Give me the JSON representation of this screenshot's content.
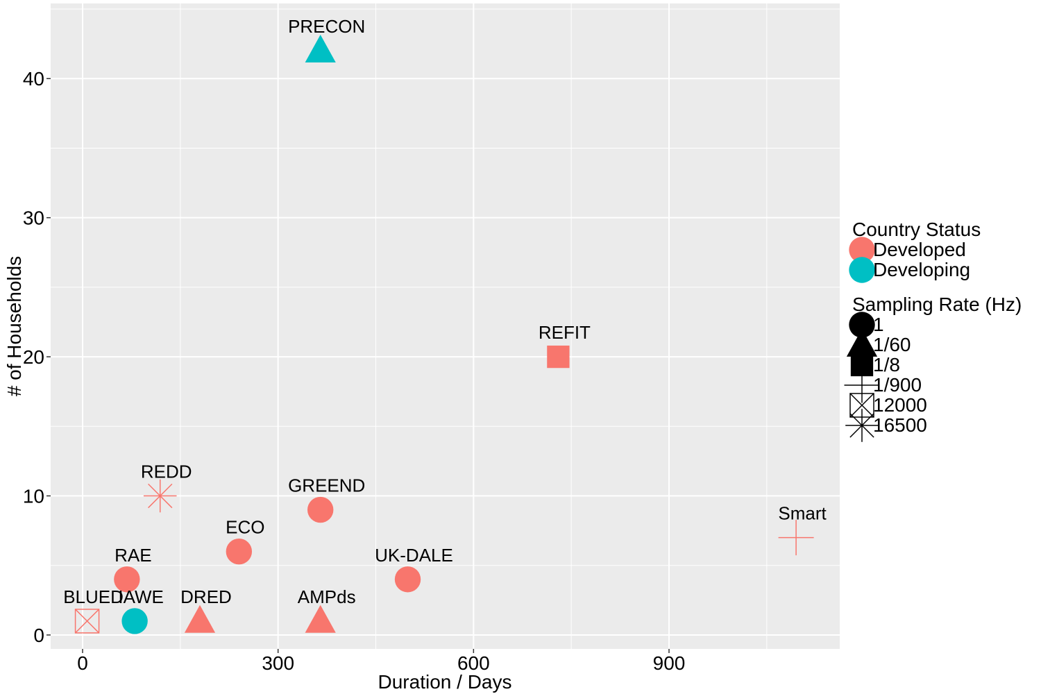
{
  "chart_data": {
    "type": "scatter",
    "title": "",
    "xlabel": "Duration / Days",
    "ylabel": "# of Households",
    "xlim": [
      -49,
      1162
    ],
    "ylim": [
      -1,
      45.4
    ],
    "x_ticks": [
      0,
      300,
      600,
      900
    ],
    "x_tick_labels": [
      "0",
      "300",
      "600",
      "900"
    ],
    "y_ticks": [
      0,
      10,
      20,
      30,
      40
    ],
    "y_tick_labels": [
      "0",
      "10",
      "20",
      "30",
      "40"
    ],
    "grid": true,
    "colors": {
      "panel": "#EBEBEB",
      "grid": "#FFFFFF",
      "Developed": "#F8766D",
      "Developing": "#00BFC4"
    },
    "points": [
      {
        "label": "PRECON",
        "x": 365,
        "y": 42,
        "status": "Developing",
        "rate": "1/60"
      },
      {
        "label": "REFIT",
        "x": 730,
        "y": 20,
        "status": "Developed",
        "rate": "1/8"
      },
      {
        "label": "REDD",
        "x": 119,
        "y": 10,
        "status": "Developed",
        "rate": "16500"
      },
      {
        "label": "GREEND",
        "x": 365,
        "y": 9,
        "status": "Developed",
        "rate": "1"
      },
      {
        "label": "ECO",
        "x": 240,
        "y": 6,
        "status": "Developed",
        "rate": "1"
      },
      {
        "label": "Smart",
        "x": 1095,
        "y": 7,
        "status": "Developed",
        "rate": "1/900"
      },
      {
        "label": "RAE",
        "x": 68,
        "y": 4,
        "status": "Developed",
        "rate": "1"
      },
      {
        "label": "UK-DALE",
        "x": 499,
        "y": 4,
        "status": "Developed",
        "rate": "1"
      },
      {
        "label": "BLUED",
        "x": 7,
        "y": 1,
        "status": "Developed",
        "rate": "12000"
      },
      {
        "label": "IAWE",
        "x": 80,
        "y": 1,
        "status": "Developing",
        "rate": "1"
      },
      {
        "label": "DRED",
        "x": 180,
        "y": 1,
        "status": "Developed",
        "rate": "1/60"
      },
      {
        "label": "AMPds",
        "x": 365,
        "y": 1,
        "status": "Developed",
        "rate": "1/60"
      }
    ],
    "legend": {
      "placement": "right",
      "color_title": "Country Status",
      "color_entries": [
        {
          "name": "Developed",
          "color": "#F8766D"
        },
        {
          "name": "Developing",
          "color": "#00BFC4"
        }
      ],
      "shape_title": "Sampling Rate (Hz)",
      "shape_entries": [
        {
          "name": "1",
          "shape": "circle"
        },
        {
          "name": "1/60",
          "shape": "triangle"
        },
        {
          "name": "1/8",
          "shape": "square"
        },
        {
          "name": "1/900",
          "shape": "plus"
        },
        {
          "name": "12000",
          "shape": "boxcross"
        },
        {
          "name": "16500",
          "shape": "asterisk"
        }
      ]
    }
  }
}
